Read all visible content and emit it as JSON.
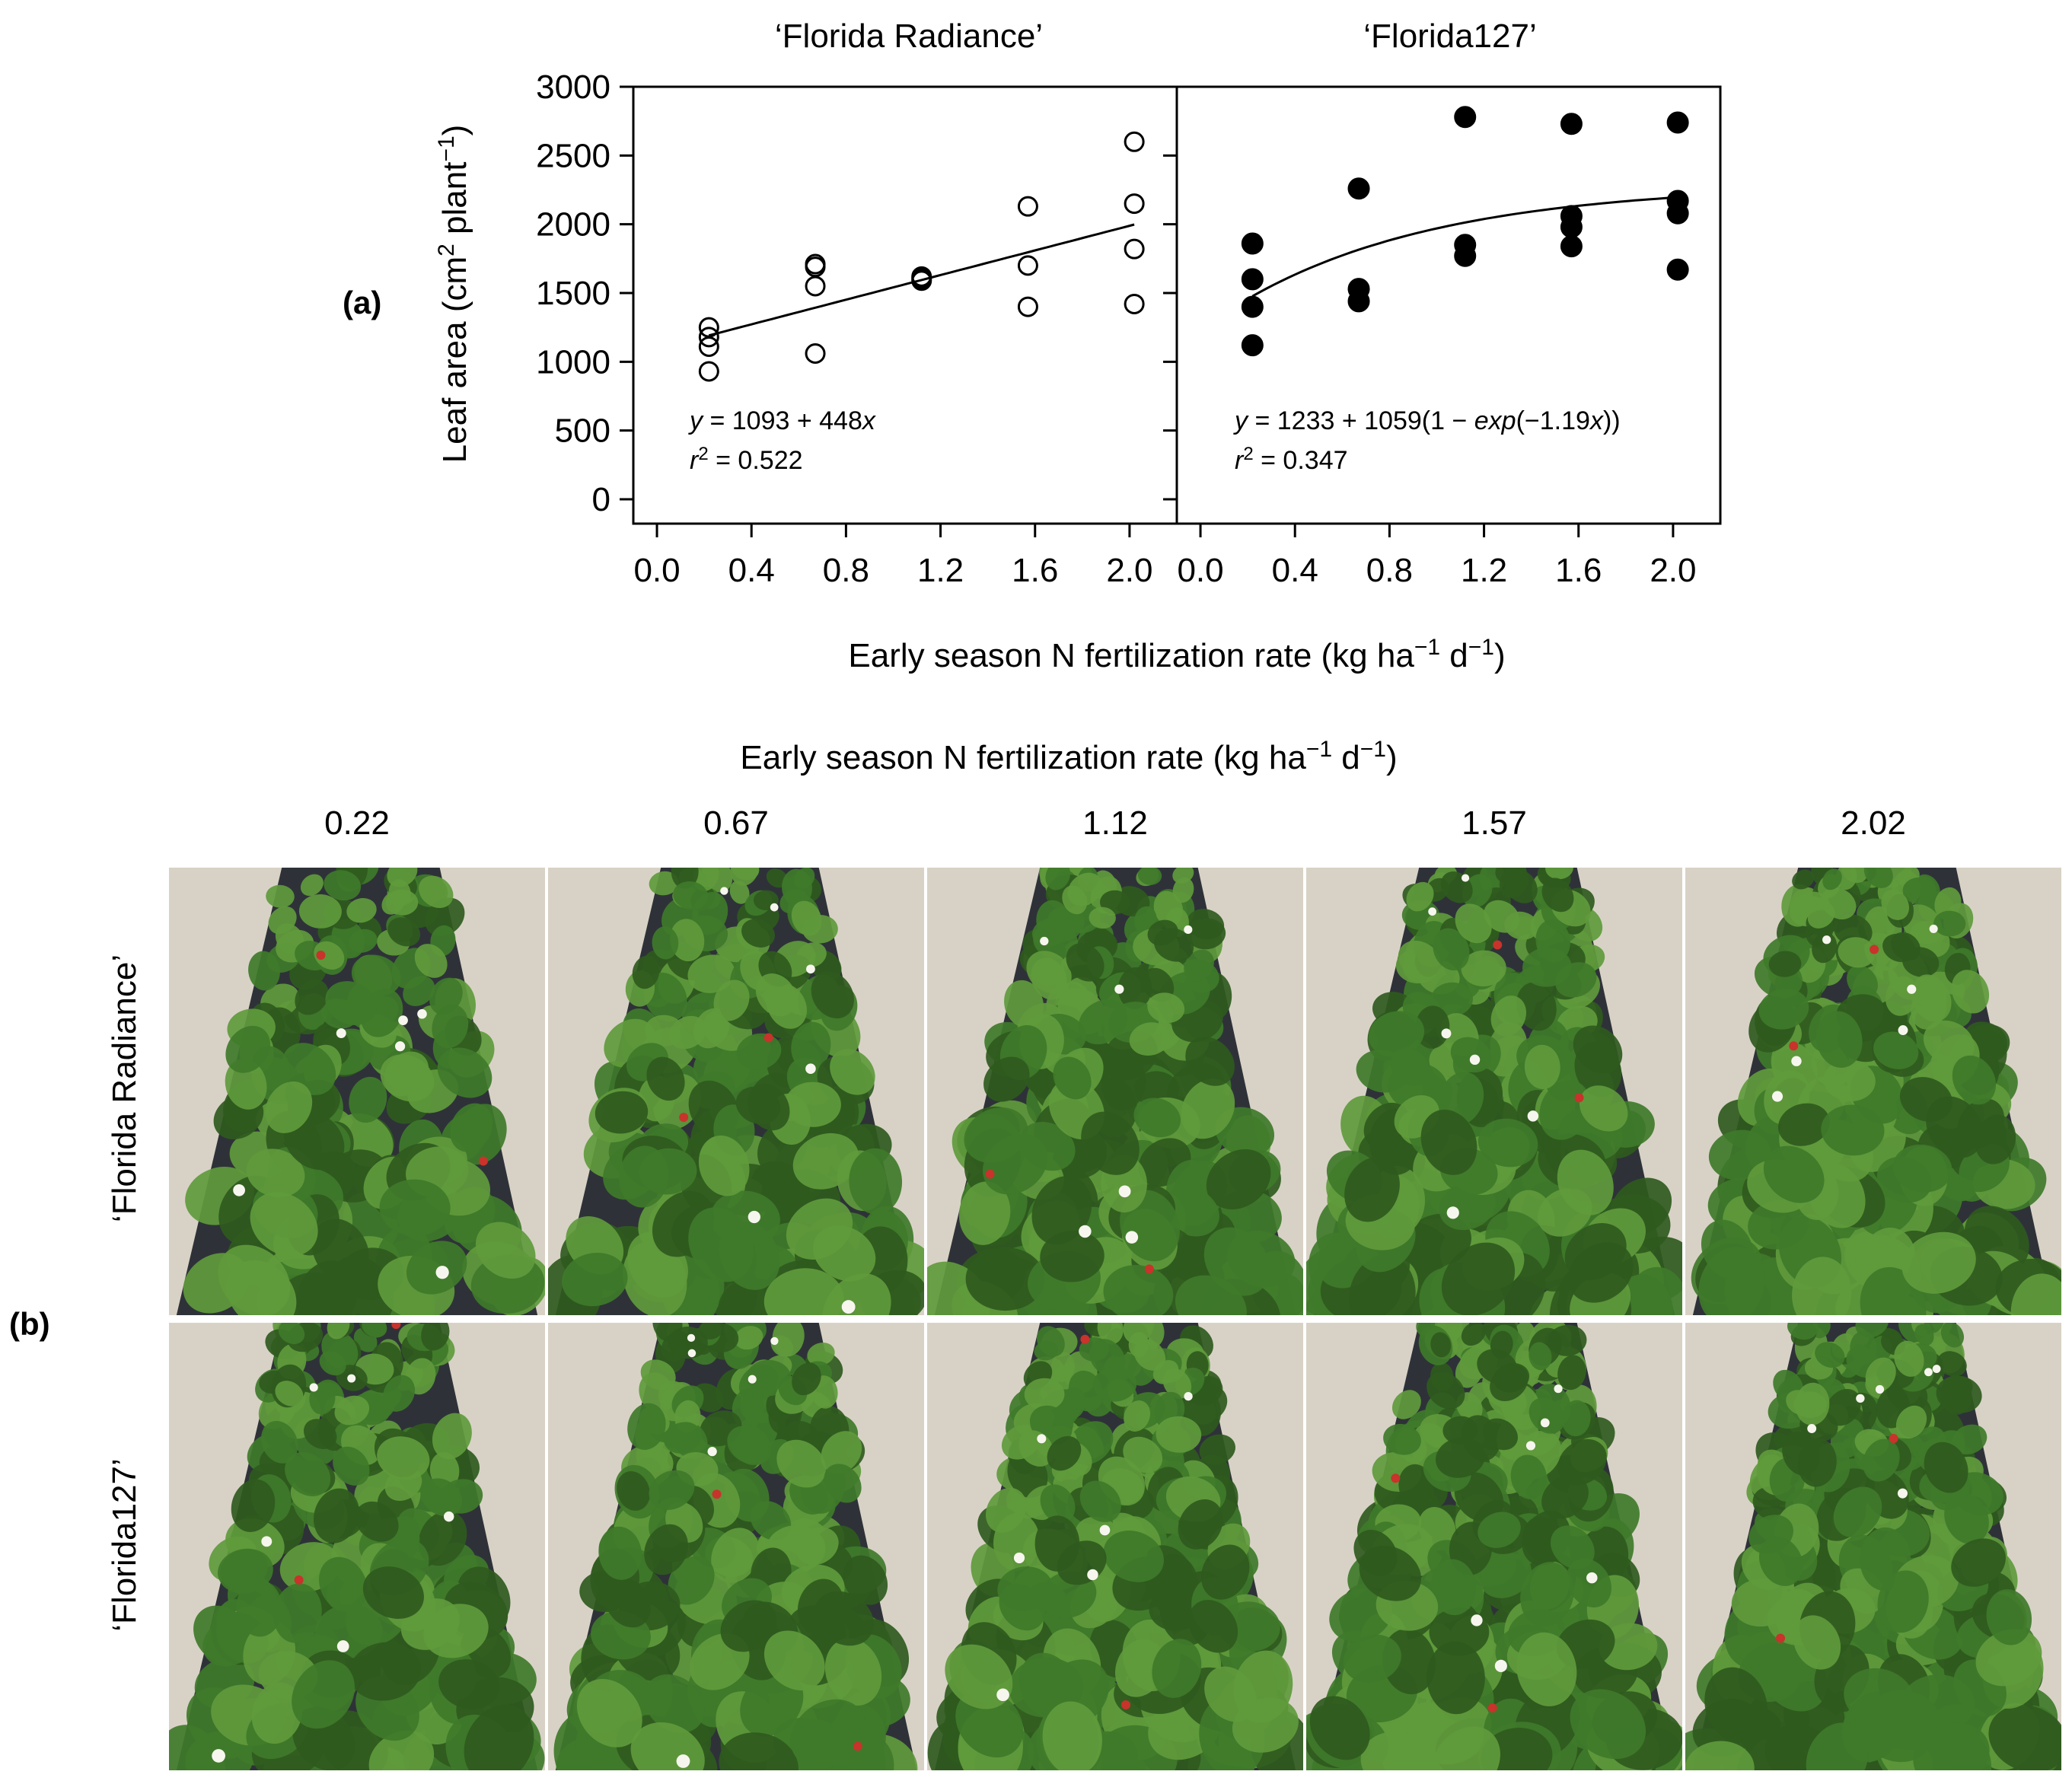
{
  "panel_labels": {
    "a": "(a)",
    "b": "(b)"
  },
  "chart_data": [
    {
      "type": "scatter",
      "title": "‘Florida Radiance’",
      "ylabel": "Leaf area (cm2 plant−1)",
      "ylabel_parts": {
        "pre": "Leaf area (cm",
        "sup1": "2",
        "mid": " plant",
        "sup2": "−1",
        "post": ")"
      },
      "ylim": [
        0,
        3000
      ],
      "xlim": [
        -0.1,
        2.2
      ],
      "yticks": [
        "0",
        "500",
        "1000",
        "1500",
        "2000",
        "2500",
        "3000"
      ],
      "ytick_values": [
        0,
        500,
        1000,
        1500,
        2000,
        2500,
        3000
      ],
      "xticks": [
        "0.0",
        "0.4",
        "0.8",
        "1.2",
        "1.6",
        "2.0"
      ],
      "xtick_values": [
        0.0,
        0.4,
        0.8,
        1.2,
        1.6,
        2.0
      ],
      "marker": "open-circle",
      "points": [
        {
          "x": 0.22,
          "y": 930
        },
        {
          "x": 0.22,
          "y": 1110
        },
        {
          "x": 0.22,
          "y": 1180
        },
        {
          "x": 0.22,
          "y": 1250
        },
        {
          "x": 0.67,
          "y": 1060
        },
        {
          "x": 0.67,
          "y": 1550
        },
        {
          "x": 0.67,
          "y": 1690
        },
        {
          "x": 0.67,
          "y": 1710
        },
        {
          "x": 1.12,
          "y": 1590
        },
        {
          "x": 1.12,
          "y": 1600
        },
        {
          "x": 1.12,
          "y": 1610
        },
        {
          "x": 1.12,
          "y": 1620
        },
        {
          "x": 1.57,
          "y": 1400
        },
        {
          "x": 1.57,
          "y": 1700
        },
        {
          "x": 1.57,
          "y": 2130
        },
        {
          "x": 2.02,
          "y": 1420
        },
        {
          "x": 2.02,
          "y": 1820
        },
        {
          "x": 2.02,
          "y": 2150
        },
        {
          "x": 2.02,
          "y": 2600
        }
      ],
      "fit": {
        "kind": "linear",
        "a": 1093,
        "b": 448,
        "x_from": 0.22,
        "x_to": 2.02
      },
      "equation": {
        "y": "y",
        "rest": " = 1093 + 448",
        "x": "x"
      },
      "r2": {
        "r": "r",
        "sup": "2",
        "rest": " = 0.522"
      }
    },
    {
      "type": "scatter",
      "title": "‘Florida127’",
      "ylim": [
        0,
        3000
      ],
      "xlim": [
        -0.1,
        2.2
      ],
      "xticks": [
        "0.0",
        "0.4",
        "0.8",
        "1.2",
        "1.6",
        "2.0"
      ],
      "xtick_values": [
        0.0,
        0.4,
        0.8,
        1.2,
        1.6,
        2.0
      ],
      "marker": "filled-circle",
      "points": [
        {
          "x": 0.22,
          "y": 1120
        },
        {
          "x": 0.22,
          "y": 1400
        },
        {
          "x": 0.22,
          "y": 1600
        },
        {
          "x": 0.22,
          "y": 1860
        },
        {
          "x": 0.67,
          "y": 1440
        },
        {
          "x": 0.67,
          "y": 1530
        },
        {
          "x": 0.67,
          "y": 2260
        },
        {
          "x": 1.12,
          "y": 1770
        },
        {
          "x": 1.12,
          "y": 1850
        },
        {
          "x": 1.12,
          "y": 2780
        },
        {
          "x": 1.57,
          "y": 1840
        },
        {
          "x": 1.57,
          "y": 1980
        },
        {
          "x": 1.57,
          "y": 2060
        },
        {
          "x": 1.57,
          "y": 2730
        },
        {
          "x": 2.02,
          "y": 1670
        },
        {
          "x": 2.02,
          "y": 2080
        },
        {
          "x": 2.02,
          "y": 2170
        },
        {
          "x": 2.02,
          "y": 2740
        }
      ],
      "fit": {
        "kind": "exponential",
        "a": 1233,
        "b": 1059,
        "c": 1.19,
        "x_from": 0.22,
        "x_to": 2.02
      },
      "equation": {
        "y": "y",
        "mid": " = 1233 + 1059(1 − ",
        "exp": "exp",
        "mid2": "(−1.19",
        "x": "x",
        "end": "))"
      },
      "r2": {
        "r": "r",
        "sup": "2",
        "rest": " = 0.347"
      }
    }
  ],
  "shared_xlabel": {
    "pre": "Early season N fertilization rate (kg ha",
    "sup1": "−1",
    "mid": " d",
    "sup2": "−1",
    "post": ")"
  },
  "photo_grid": {
    "header": {
      "pre": "Early season N fertilization rate (kg ha",
      "sup1": "−1",
      "mid": " d",
      "sup2": "−1",
      "post": ")"
    },
    "rates": [
      "0.22",
      "0.67",
      "1.12",
      "1.57",
      "2.02"
    ],
    "rate_values": [
      0.22,
      0.67,
      1.12,
      1.57,
      2.02
    ],
    "rows": [
      "‘Florida Radiance’",
      "‘Florida127’"
    ]
  },
  "colors": {
    "axis": "#000000",
    "sand": "#d8d2c6",
    "mulch": "#2e3238",
    "leaf_dark": "#2f5a1e",
    "leaf_mid": "#3f7a2a",
    "leaf_light": "#5f9a3c",
    "flower": "#f6f6ee",
    "berry": "#c8332b"
  }
}
